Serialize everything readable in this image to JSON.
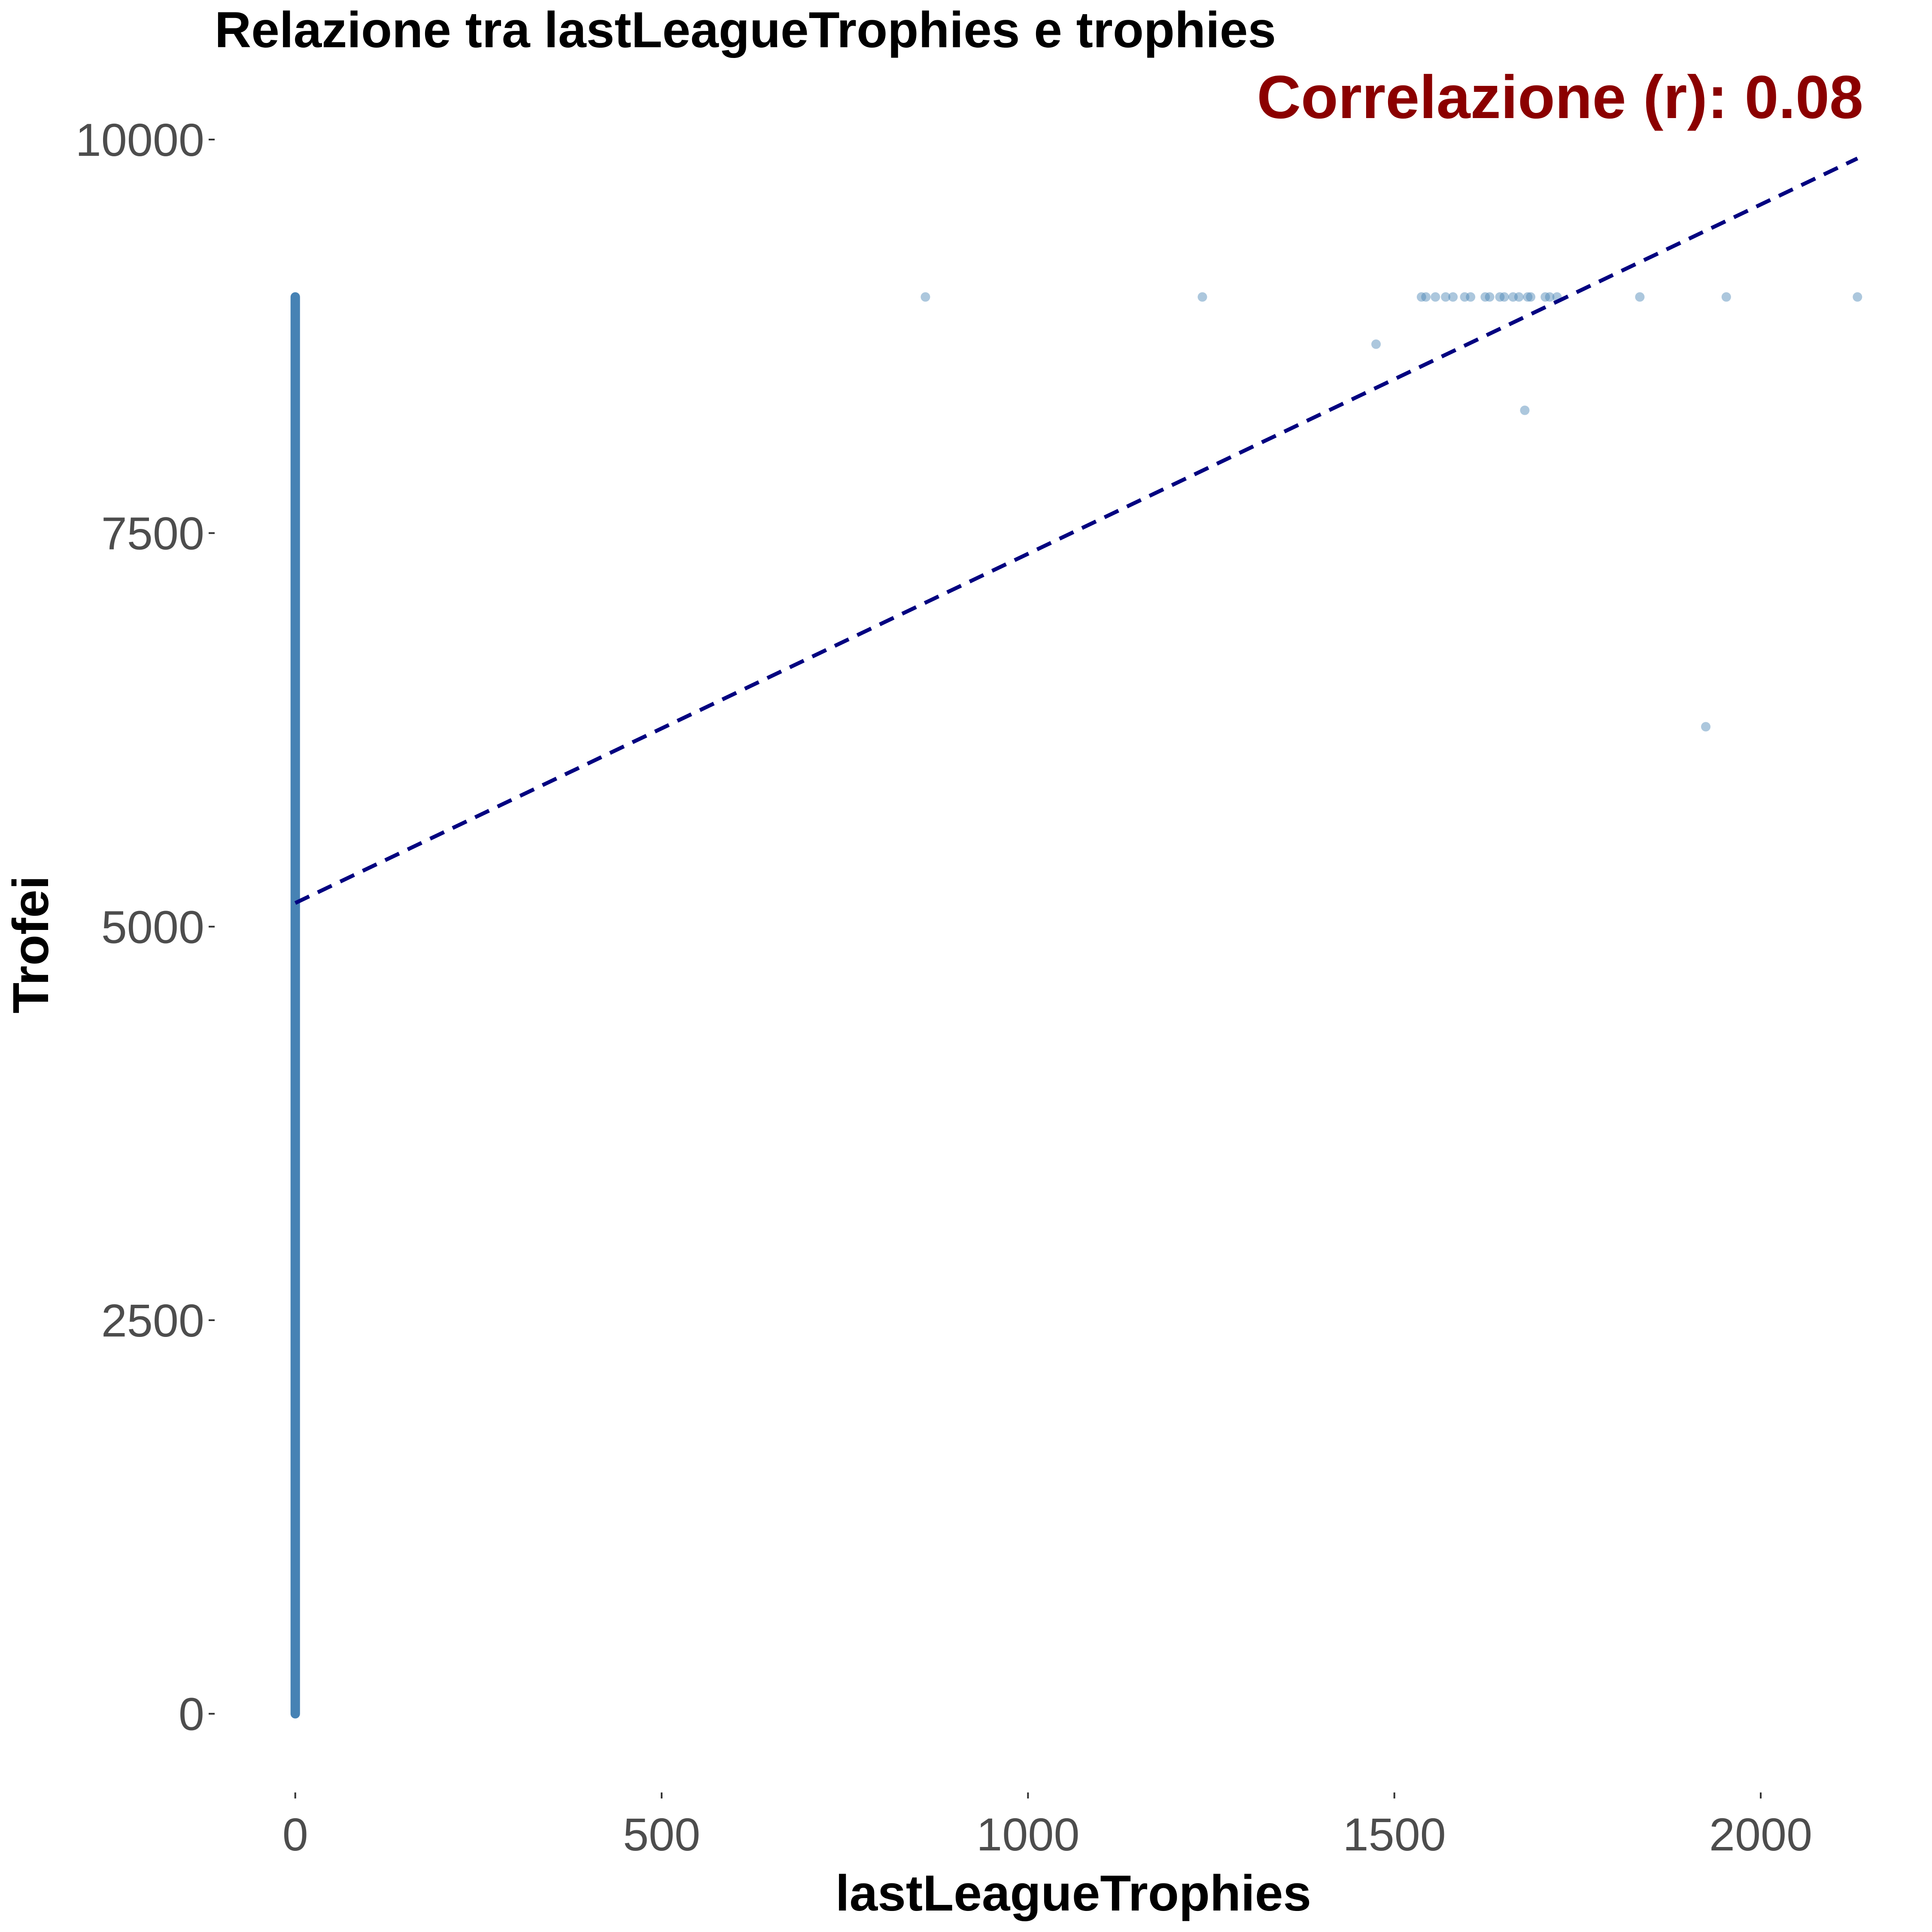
{
  "chart_data": {
    "type": "scatter",
    "title": "Relazione tra lastLeagueTrophies e trophies",
    "annotation": "Correlazione (r): 0.08",
    "xlabel": "lastLeagueTrophies",
    "ylabel": "Trofei",
    "xlim": [
      -110,
      2140
    ],
    "ylim": [
      -500,
      10300
    ],
    "x_ticks": [
      0,
      500,
      1000,
      1500,
      2000
    ],
    "y_ticks": [
      0,
      2500,
      5000,
      7500,
      10000
    ],
    "x_tick_labels": [
      "0",
      "500",
      "1000",
      "1500",
      "2000"
    ],
    "y_tick_labels": [
      "0",
      "2500",
      "5000",
      "7500",
      "10000"
    ],
    "grid": false,
    "zero_column": {
      "x": 0,
      "y_min": 0,
      "y_max": 9000
    },
    "points": [
      {
        "x": 860,
        "y": 9000
      },
      {
        "x": 1238,
        "y": 9000
      },
      {
        "x": 1475,
        "y": 8700
      },
      {
        "x": 1537,
        "y": 9000
      },
      {
        "x": 1543,
        "y": 9000
      },
      {
        "x": 1556,
        "y": 9000
      },
      {
        "x": 1570,
        "y": 9000
      },
      {
        "x": 1580,
        "y": 9000
      },
      {
        "x": 1596,
        "y": 9000
      },
      {
        "x": 1604,
        "y": 9000
      },
      {
        "x": 1624,
        "y": 9000
      },
      {
        "x": 1630,
        "y": 9000
      },
      {
        "x": 1644,
        "y": 9000
      },
      {
        "x": 1650,
        "y": 9000
      },
      {
        "x": 1662,
        "y": 9000
      },
      {
        "x": 1670,
        "y": 9000
      },
      {
        "x": 1678,
        "y": 8280
      },
      {
        "x": 1682,
        "y": 9000
      },
      {
        "x": 1686,
        "y": 9000
      },
      {
        "x": 1706,
        "y": 9000
      },
      {
        "x": 1712,
        "y": 9000
      },
      {
        "x": 1722,
        "y": 9000
      },
      {
        "x": 1835,
        "y": 9000
      },
      {
        "x": 1925,
        "y": 6270
      },
      {
        "x": 1953,
        "y": 9000
      },
      {
        "x": 2132,
        "y": 9000
      }
    ],
    "trend_line": {
      "x": [
        0,
        2132
      ],
      "y": [
        5150,
        9880
      ],
      "style": "dashed"
    },
    "colors": {
      "points": "#4682b4",
      "trend_line": "#000080",
      "annotation": "#8b0000"
    }
  }
}
